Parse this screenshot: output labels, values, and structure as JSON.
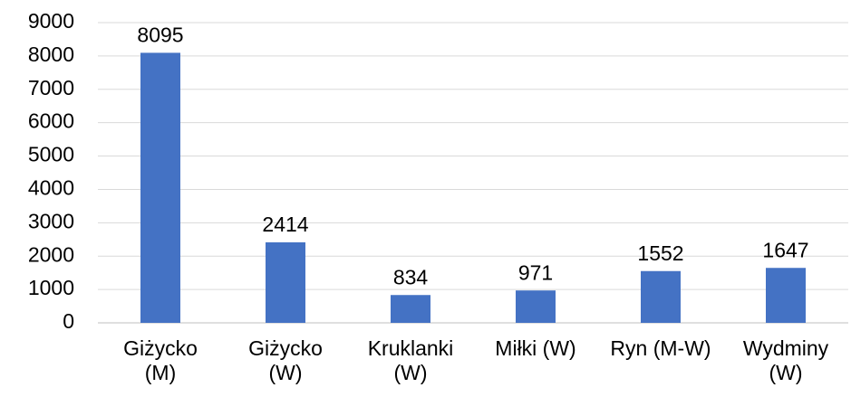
{
  "chart_data": {
    "type": "bar",
    "categories": [
      "Giżycko (M)",
      "Giżycko (W)",
      "Kruklanki (W)",
      "Miłki (W)",
      "Ryn (M-W)",
      "Wydminy (W)"
    ],
    "values": [
      8095,
      2414,
      834,
      971,
      1552,
      1647
    ],
    "color": "#4472c4",
    "ylim": [
      0,
      9000
    ],
    "yticks": [
      0,
      1000,
      2000,
      3000,
      4000,
      5000,
      6000,
      7000,
      8000,
      9000
    ],
    "grid": true
  }
}
